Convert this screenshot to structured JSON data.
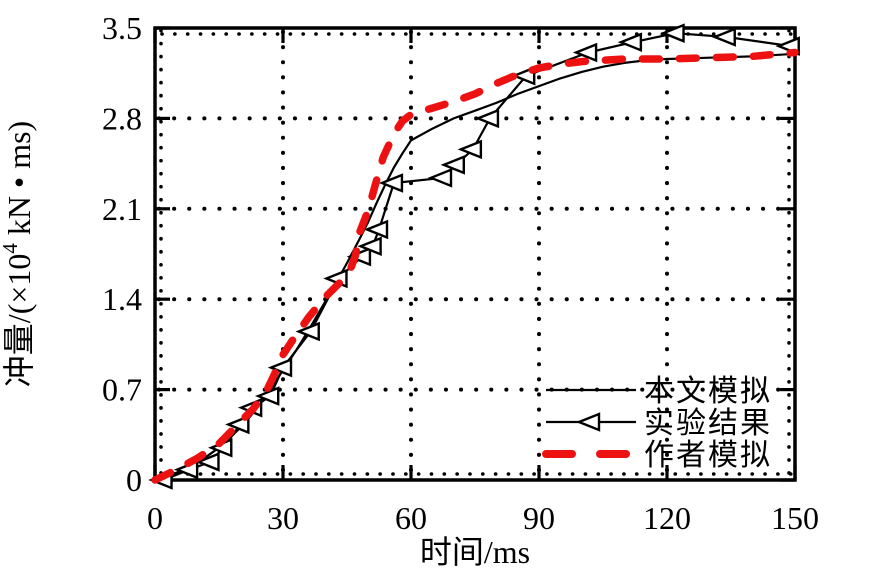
{
  "figure": {
    "background": "#ffffff",
    "axis_color": "#000000"
  },
  "chart_data": {
    "type": "line",
    "title": "",
    "xlabel": "时间/ms",
    "ylabel": "冲量/(×10⁴ kN • ms)",
    "ylabel_parts": {
      "prefix": "冲量/(×10",
      "superscript": "4",
      "suffix": " kN • ms)"
    },
    "xlim": [
      0,
      150
    ],
    "ylim": [
      0,
      3.5
    ],
    "xticks": [
      0,
      30,
      60,
      90,
      120,
      150
    ],
    "xtick_labels": [
      "0",
      "30",
      "60",
      "90",
      "120",
      "150"
    ],
    "yticks": [
      0,
      0.7,
      1.4,
      2.1,
      2.8,
      3.5
    ],
    "ytick_labels": [
      "0",
      "0.7",
      "1.4",
      "2.1",
      "2.8",
      "3.5"
    ],
    "grid": "dotted",
    "minor_tick_step_x": 3,
    "minor_tick_step_y": 0.1,
    "legend_position": "lower-right",
    "series": [
      {
        "name": "本文模拟",
        "color": "#000000",
        "line_style": "solid",
        "line_width": 2.2,
        "marker": "none",
        "points": [
          [
            0,
            0
          ],
          [
            3,
            0.03
          ],
          [
            6,
            0.07
          ],
          [
            9,
            0.12
          ],
          [
            12,
            0.18
          ],
          [
            15,
            0.25
          ],
          [
            18,
            0.34
          ],
          [
            21,
            0.44
          ],
          [
            24,
            0.56
          ],
          [
            27,
            0.7
          ],
          [
            30,
            0.85
          ],
          [
            33,
            1.0
          ],
          [
            36,
            1.16
          ],
          [
            39,
            1.33
          ],
          [
            42,
            1.5
          ],
          [
            45,
            1.68
          ],
          [
            48,
            1.87
          ],
          [
            50,
            2.0
          ],
          [
            52,
            2.15
          ],
          [
            54,
            2.29
          ],
          [
            56,
            2.42
          ],
          [
            58,
            2.53
          ],
          [
            60,
            2.63
          ],
          [
            65,
            2.72
          ],
          [
            70,
            2.8
          ],
          [
            75,
            2.86
          ],
          [
            80,
            2.92
          ],
          [
            85,
            2.99
          ],
          [
            90,
            3.05
          ],
          [
            95,
            3.11
          ],
          [
            100,
            3.16
          ],
          [
            105,
            3.2
          ],
          [
            110,
            3.23
          ],
          [
            115,
            3.25
          ],
          [
            120,
            3.26
          ],
          [
            130,
            3.27
          ],
          [
            140,
            3.28
          ],
          [
            150,
            3.3
          ]
        ]
      },
      {
        "name": "实验结果",
        "color": "#000000",
        "line_style": "solid",
        "line_width": 2.2,
        "marker": "triangle-left",
        "points": [
          [
            2,
            0
          ],
          [
            8,
            0.08
          ],
          [
            13,
            0.14
          ],
          [
            16,
            0.25
          ],
          [
            20,
            0.43
          ],
          [
            23,
            0.56
          ],
          [
            27,
            0.65
          ],
          [
            30,
            0.87
          ],
          [
            36.5,
            1.15
          ],
          [
            43,
            1.56
          ],
          [
            48.5,
            1.73
          ],
          [
            51,
            1.81
          ],
          [
            52.5,
            1.94
          ],
          [
            56,
            2.3
          ],
          [
            67.5,
            2.34
          ],
          [
            70.5,
            2.44
          ],
          [
            74.5,
            2.56
          ],
          [
            78.5,
            2.8
          ],
          [
            87,
            3.13
          ],
          [
            101.5,
            3.31
          ],
          [
            112,
            3.39
          ],
          [
            122,
            3.46
          ],
          [
            134,
            3.43
          ],
          [
            149,
            3.36
          ]
        ]
      },
      {
        "name": "作者模拟",
        "color": "#ee1111",
        "line_style": "dashed",
        "line_width": 7.5,
        "marker": "none",
        "points": [
          [
            0,
            0
          ],
          [
            5,
            0.08
          ],
          [
            10,
            0.17
          ],
          [
            15,
            0.28
          ],
          [
            20,
            0.45
          ],
          [
            23,
            0.55
          ],
          [
            26,
            0.68
          ],
          [
            28,
            0.82
          ],
          [
            30,
            0.97
          ],
          [
            32,
            1.07
          ],
          [
            36,
            1.26
          ],
          [
            40,
            1.42
          ],
          [
            44,
            1.55
          ],
          [
            46,
            1.65
          ],
          [
            47,
            1.74
          ],
          [
            48,
            1.92
          ],
          [
            50,
            2.09
          ],
          [
            52,
            2.33
          ],
          [
            53.5,
            2.5
          ],
          [
            56,
            2.68
          ],
          [
            58,
            2.78
          ],
          [
            60,
            2.83
          ],
          [
            65,
            2.88
          ],
          [
            70,
            2.93
          ],
          [
            75,
            2.99
          ],
          [
            80,
            3.07
          ],
          [
            85,
            3.14
          ],
          [
            90,
            3.19
          ],
          [
            95,
            3.22
          ],
          [
            100,
            3.24
          ],
          [
            110,
            3.26
          ],
          [
            120,
            3.26
          ],
          [
            130,
            3.27
          ],
          [
            140,
            3.28
          ],
          [
            150,
            3.31
          ]
        ]
      }
    ]
  }
}
